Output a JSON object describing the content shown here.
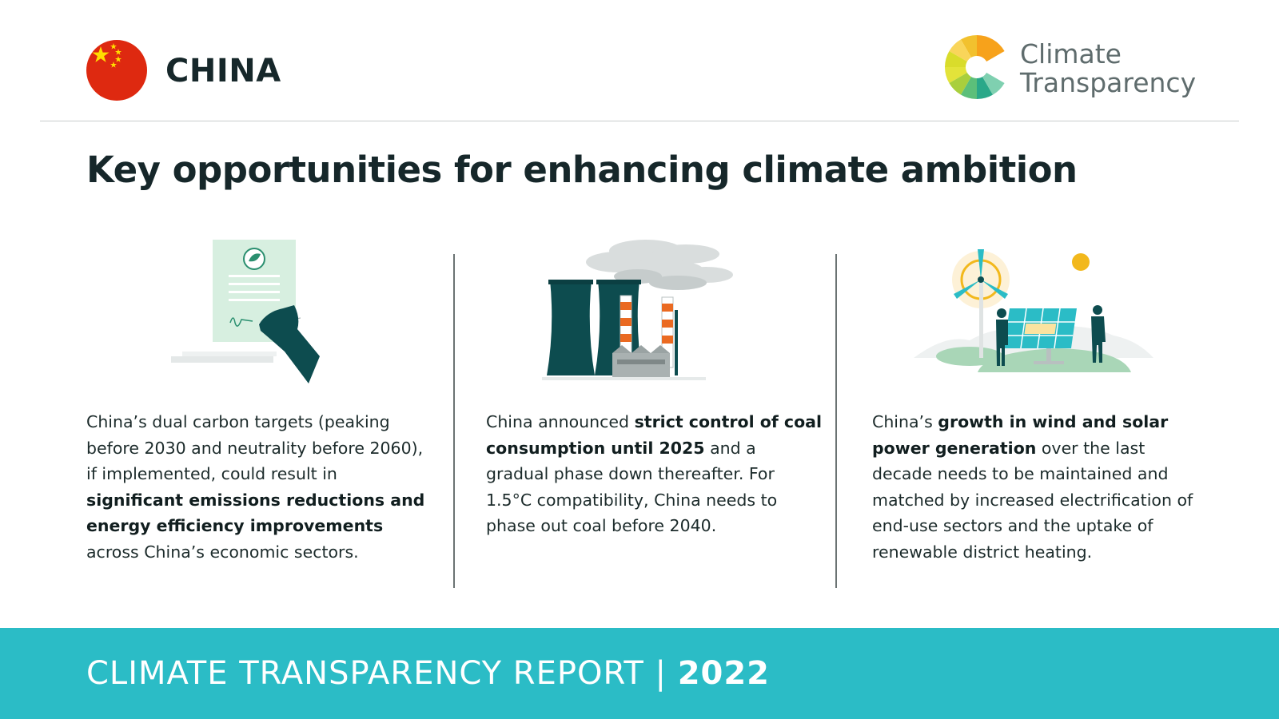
{
  "header": {
    "country": "CHINA",
    "logo_line1": "Climate",
    "logo_line2": "Transparency"
  },
  "title": "Key opportunities for enhancing climate ambition",
  "columns": [
    {
      "icon": "signing-document-icon",
      "t1": "China’s dual carbon targets (peaking before 2030 and neutrality before 2060), if implemented, could result in ",
      "b1": "significant emissions reductions and energy efficiency improvements",
      "t2": " across China’s economic sectors."
    },
    {
      "icon": "coal-power-plant-icon",
      "t1": "China announced ",
      "b1": "strict control of coal consumption until 2025",
      "t2": " and a gradual phase down thereafter. For 1.5°C compatibility, China needs to phase out coal before 2040."
    },
    {
      "icon": "wind-solar-icon",
      "t1": "China’s ",
      "b1": "growth in wind and solar power generation",
      "t2": " over the last decade needs to be maintained and matched by increased electrification of end-use sectors and the uptake of renewable district heating."
    }
  ],
  "footer": {
    "report": "CLIMATE TRANSPARENCY REPORT",
    "separator": "|",
    "year": "2022"
  },
  "colors": {
    "footer_bg": "#2bbcc6",
    "flag_red": "#de2910",
    "flag_yellow": "#ffde00",
    "dark_teal": "#0d4c4f"
  }
}
